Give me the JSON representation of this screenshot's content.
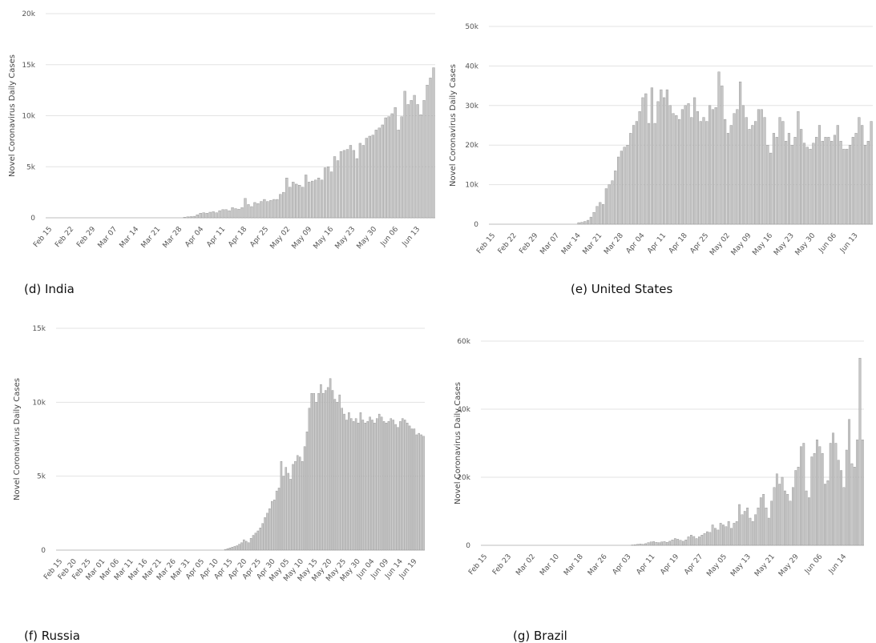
{
  "captions": {
    "d": "(d) India",
    "e": "(e) United States",
    "f": "(f) Russia",
    "g": "(g) Brazil"
  },
  "chart_data": [
    {
      "type": "bar",
      "id": "d",
      "ylabel": "Novel Coronavirus Daily Cases",
      "ylim": [
        0,
        20000
      ],
      "yticks": [
        0,
        5000,
        10000,
        15000,
        20000
      ],
      "ytick_labels": [
        "0",
        "5k",
        "10k",
        "15k",
        "20k"
      ],
      "xtick_labels": [
        "Feb 15",
        "Feb 22",
        "Feb 29",
        "Mar 07",
        "Mar 14",
        "Mar 21",
        "Mar 28",
        "Apr 04",
        "Apr 11",
        "Apr 18",
        "Apr 25",
        "May 02",
        "May 09",
        "May 16",
        "May 23",
        "May 30",
        "Jun 06",
        "Jun 13"
      ],
      "values": [
        0,
        0,
        0,
        0,
        0,
        0,
        0,
        0,
        0,
        0,
        0,
        0,
        0,
        0,
        0,
        0,
        0,
        0,
        0,
        0,
        0,
        0,
        0,
        0,
        0,
        0,
        0,
        0,
        0,
        0,
        0,
        0,
        0,
        0,
        0,
        0,
        0,
        0,
        0,
        0,
        0,
        0,
        0,
        50,
        100,
        120,
        150,
        300,
        450,
        500,
        450,
        550,
        600,
        500,
        700,
        800,
        800,
        700,
        1000,
        900,
        850,
        1000,
        1900,
        1300,
        1100,
        1500,
        1400,
        1600,
        1800,
        1600,
        1700,
        1800,
        1800,
        2300,
        2500,
        3900,
        3000,
        3500,
        3300,
        3200,
        3000,
        4200,
        3500,
        3600,
        3700,
        3900,
        3700,
        4900,
        5000,
        4500,
        6000,
        5600,
        6500,
        6600,
        6700,
        7100,
        6600,
        5800,
        7300,
        7100,
        7800,
        8000,
        8100,
        8600,
        8800,
        9100,
        9800,
        9900,
        10200,
        10800,
        8600,
        9900,
        12400,
        11100,
        11500,
        12000,
        11100,
        10100,
        11500,
        13000,
        13700,
        14700
      ]
    },
    {
      "type": "bar",
      "id": "e",
      "ylabel": "Novel Coronavirus Daily Cases",
      "ylim": [
        0,
        50000
      ],
      "yticks": [
        0,
        10000,
        20000,
        30000,
        40000,
        50000
      ],
      "ytick_labels": [
        "0",
        "10k",
        "20k",
        "30k",
        "40k",
        "50k"
      ],
      "xtick_labels": [
        "Feb 15",
        "Feb 22",
        "Feb 29",
        "Mar 07",
        "Mar 14",
        "Mar 21",
        "Mar 28",
        "Apr 04",
        "Apr 11",
        "Apr 18",
        "Apr 25",
        "May 02",
        "May 09",
        "May 16",
        "May 23",
        "May 30",
        "Jun 06",
        "Jun 13"
      ],
      "values": [
        0,
        0,
        0,
        0,
        0,
        0,
        0,
        0,
        0,
        0,
        0,
        0,
        0,
        0,
        0,
        0,
        0,
        0,
        0,
        0,
        0,
        0,
        0,
        0,
        0,
        0,
        0,
        0,
        0,
        400,
        500,
        700,
        1000,
        1800,
        3000,
        4500,
        5500,
        5000,
        9000,
        10000,
        11000,
        13500,
        17000,
        18500,
        19500,
        20000,
        23000,
        25000,
        26000,
        28500,
        32000,
        33000,
        25500,
        34500,
        25500,
        31000,
        34000,
        32000,
        34000,
        30000,
        28000,
        27500,
        26500,
        29000,
        30000,
        30500,
        27000,
        32000,
        28500,
        26000,
        27000,
        26000,
        30000,
        29000,
        29500,
        38500,
        35000,
        26500,
        23000,
        25000,
        28000,
        29000,
        36000,
        30000,
        27000,
        24000,
        25000,
        26000,
        29000,
        29000,
        27000,
        20000,
        18000,
        23000,
        22000,
        27000,
        26000,
        21000,
        23000,
        20000,
        22000,
        28500,
        24000,
        20500,
        19500,
        19000,
        20500,
        22000,
        25000,
        21000,
        22000,
        22000,
        21000,
        22500,
        25000,
        21000,
        19000,
        19000,
        20000,
        22000,
        23000,
        27000,
        25000,
        20000,
        21000,
        26000
      ]
    },
    {
      "type": "bar",
      "id": "f",
      "ylabel": "Novel Coronavirus Daily Cases",
      "ylim": [
        0,
        15000
      ],
      "yticks": [
        0,
        5000,
        10000,
        15000
      ],
      "ytick_labels": [
        "0",
        "5k",
        "10k",
        "15k"
      ],
      "xtick_labels": [
        "Feb 15",
        "Feb 20",
        "Feb 25",
        "Mar 01",
        "Mar 06",
        "Mar 11",
        "Mar 16",
        "Mar 21",
        "Mar 26",
        "Mar 31",
        "Apr 05",
        "Apr 10",
        "Apr 15",
        "Apr 20",
        "Apr 25",
        "Apr 30",
        "May 05",
        "May 10",
        "May 15",
        "May 20",
        "May 25",
        "May 30",
        "Jun 04",
        "Jun 09",
        "Jun 14",
        "Jun 19"
      ],
      "values": [
        0,
        0,
        0,
        0,
        0,
        0,
        0,
        0,
        0,
        0,
        0,
        0,
        0,
        0,
        0,
        0,
        0,
        0,
        0,
        0,
        0,
        0,
        0,
        0,
        0,
        0,
        0,
        0,
        0,
        0,
        0,
        0,
        0,
        0,
        0,
        0,
        0,
        0,
        0,
        0,
        0,
        0,
        0,
        0,
        0,
        0,
        0,
        0,
        0,
        0,
        0,
        0,
        0,
        0,
        0,
        0,
        0,
        0,
        0,
        0,
        0,
        0,
        0,
        0,
        0,
        0,
        0,
        0,
        0,
        0,
        0,
        0,
        50,
        100,
        150,
        200,
        250,
        300,
        400,
        500,
        700,
        600,
        500,
        800,
        1000,
        1150,
        1300,
        1500,
        1800,
        2200,
        2500,
        2800,
        3300,
        3400,
        4000,
        4200,
        6000,
        5000,
        5600,
        5200,
        4800,
        5800,
        6000,
        6400,
        6300,
        6000,
        7000,
        8000,
        9600,
        10600,
        10600,
        10000,
        10600,
        11200,
        10600,
        10800,
        11000,
        11600,
        10800,
        10200,
        10000,
        10500,
        9600,
        9200,
        8800,
        9300,
        8900,
        8700,
        8900,
        8600,
        9300,
        8800,
        8600,
        8700,
        9000,
        8800,
        8600,
        8900,
        9200,
        9000,
        8700,
        8600,
        8700,
        8900,
        8800,
        8500,
        8300,
        8700,
        8900,
        8800,
        8600,
        8400,
        8200,
        8200,
        7800,
        7900,
        7800,
        7700
      ]
    },
    {
      "type": "bar",
      "id": "g",
      "ylabel": "Novel Coronavirus Daily Cases",
      "ylim": [
        0,
        60000
      ],
      "yticks": [
        0,
        20000,
        40000,
        60000
      ],
      "ytick_labels": [
        "0",
        "20k",
        "40k",
        "60k"
      ],
      "xtick_labels": [
        "Feb 15",
        "Feb 23",
        "Mar 02",
        "Mar 10",
        "Mar 18",
        "Mar 26",
        "Apr 03",
        "Apr 11",
        "Apr 19",
        "Apr 27",
        "May 05",
        "May 13",
        "May 21",
        "May 29",
        "Jun 06",
        "Jun 14"
      ],
      "values": [
        0,
        0,
        0,
        0,
        0,
        0,
        0,
        0,
        0,
        0,
        0,
        0,
        0,
        0,
        0,
        0,
        0,
        0,
        0,
        0,
        0,
        0,
        0,
        0,
        0,
        0,
        0,
        0,
        0,
        0,
        0,
        0,
        0,
        0,
        0,
        0,
        0,
        0,
        0,
        0,
        0,
        0,
        0,
        0,
        0,
        0,
        0,
        0,
        0,
        0,
        0,
        0,
        0,
        0,
        0,
        0,
        100,
        200,
        300,
        400,
        300,
        500,
        800,
        1000,
        1100,
        900,
        800,
        1000,
        1100,
        900,
        1200,
        1600,
        2000,
        1800,
        1500,
        1200,
        1600,
        2500,
        3000,
        2600,
        2000,
        2500,
        3000,
        3500,
        4000,
        3800,
        6000,
        5000,
        4500,
        6500,
        6000,
        5500,
        7000,
        5000,
        6500,
        7000,
        12000,
        9000,
        10000,
        11000,
        8000,
        7000,
        9000,
        11000,
        14000,
        15000,
        11000,
        8000,
        13000,
        17000,
        21000,
        18000,
        20000,
        16000,
        15000,
        13000,
        17000,
        22000,
        23000,
        29000,
        30000,
        16000,
        14000,
        26000,
        27000,
        31000,
        29000,
        27000,
        18000,
        19000,
        30000,
        33000,
        30000,
        25000,
        22000,
        17000,
        28000,
        37000,
        24000,
        23000,
        31000,
        55000,
        31000
      ]
    }
  ]
}
